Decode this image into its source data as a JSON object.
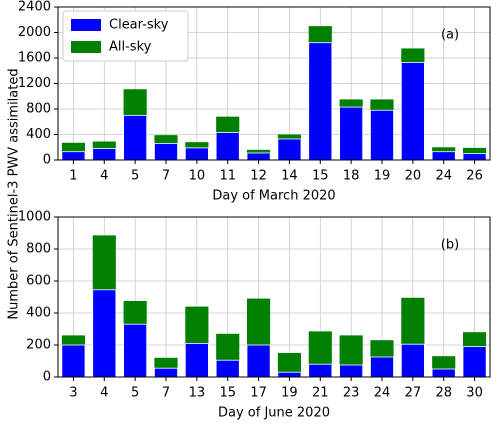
{
  "ylabel": "Number of Sentinel-3 PWV assimilated",
  "chart_data": [
    {
      "type": "bar",
      "annotation": "(a)",
      "xlabel": "Day of March 2020",
      "grid": true,
      "legend": "upper left",
      "overlay": true,
      "categories": [
        "1",
        "4",
        "5",
        "7",
        "10",
        "11",
        "12",
        "14",
        "15",
        "18",
        "19",
        "20",
        "24",
        "26"
      ],
      "series": [
        {
          "name": "Clear-sky",
          "color": "#0000ff",
          "values": [
            130,
            180,
            700,
            260,
            190,
            430,
            110,
            330,
            1840,
            830,
            780,
            1530,
            130,
            100
          ]
        },
        {
          "name": "All-sky",
          "color": "#008000",
          "values": [
            270,
            290,
            1110,
            390,
            280,
            680,
            160,
            400,
            2100,
            950,
            950,
            1750,
            200,
            190
          ]
        }
      ],
      "ylim": [
        0,
        2400
      ],
      "yticks": [
        0,
        400,
        800,
        1200,
        1600,
        2000,
        2400
      ]
    },
    {
      "type": "bar",
      "annotation": "(b)",
      "xlabel": "Day of June 2020",
      "grid": true,
      "overlay": true,
      "categories": [
        "3",
        "4",
        "5",
        "7",
        "13",
        "15",
        "17",
        "19",
        "21",
        "23",
        "24",
        "27",
        "28",
        "30"
      ],
      "series": [
        {
          "color": "#0000ff",
          "values": [
            200,
            545,
            330,
            55,
            210,
            105,
            200,
            30,
            80,
            75,
            125,
            205,
            50,
            190
          ]
        },
        {
          "color": "#008000",
          "values": [
            260,
            885,
            475,
            120,
            440,
            270,
            490,
            150,
            285,
            260,
            230,
            495,
            130,
            280
          ]
        }
      ],
      "ylim": [
        0,
        1000
      ],
      "yticks": [
        0,
        200,
        400,
        600,
        800,
        1000
      ]
    }
  ]
}
